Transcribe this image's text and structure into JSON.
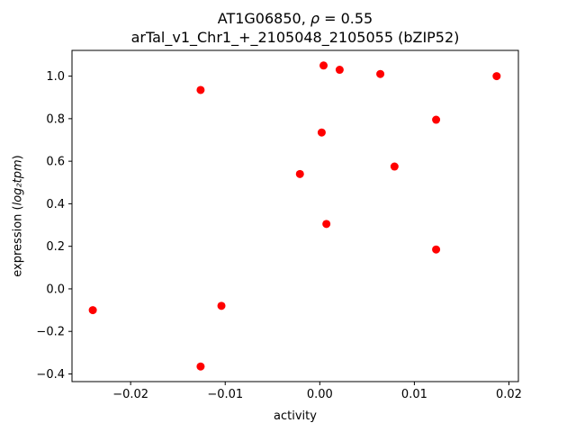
{
  "figure": {
    "title_line1_prefix": "AT1G06850, ",
    "title_rho": "ρ",
    "title_line1_suffix": " = 0.55",
    "title_line2": "arTal_v1_Chr1_+_2105048_2105055 (bZIP52)",
    "xlabel": "activity",
    "ylabel_prefix": "expression (",
    "ylabel_math": "log₂tpm",
    "ylabel_suffix": ")"
  },
  "chart_data": {
    "type": "scatter",
    "title": "AT1G06850, ρ = 0.55\narTal_v1_Chr1_+_2105048_2105055 (bZIP52)",
    "xlabel": "activity",
    "ylabel": "expression (log₂tpm)",
    "legend": "none",
    "grid": false,
    "marker_color": "#ff0000",
    "axis_color": "#000000",
    "xlim": [
      -0.0262,
      0.021
    ],
    "ylim": [
      -0.436,
      1.121
    ],
    "xticks": [
      {
        "value": -0.02,
        "label": "−0.02"
      },
      {
        "value": -0.01,
        "label": "−0.01"
      },
      {
        "value": 0.0,
        "label": "0.00"
      },
      {
        "value": 0.01,
        "label": "0.01"
      },
      {
        "value": 0.02,
        "label": "0.02"
      }
    ],
    "yticks": [
      {
        "value": -0.4,
        "label": "−0.4"
      },
      {
        "value": -0.2,
        "label": "−0.2"
      },
      {
        "value": 0.0,
        "label": "0.0"
      },
      {
        "value": 0.2,
        "label": "0.2"
      },
      {
        "value": 0.4,
        "label": "0.4"
      },
      {
        "value": 0.6,
        "label": "0.6"
      },
      {
        "value": 0.8,
        "label": "0.8"
      },
      {
        "value": 1.0,
        "label": "1.0"
      }
    ],
    "points": [
      [
        -0.024,
        -0.1
      ],
      [
        -0.0126,
        0.935
      ],
      [
        -0.0126,
        -0.365
      ],
      [
        -0.0104,
        -0.08
      ],
      [
        -0.0021,
        0.54
      ],
      [
        0.0002,
        0.735
      ],
      [
        0.0004,
        1.05
      ],
      [
        0.0007,
        0.305
      ],
      [
        0.0021,
        1.03
      ],
      [
        0.0064,
        1.01
      ],
      [
        0.0079,
        0.575
      ],
      [
        0.0123,
        0.795
      ],
      [
        0.0123,
        0.185
      ],
      [
        0.0187,
        1.0
      ]
    ]
  }
}
